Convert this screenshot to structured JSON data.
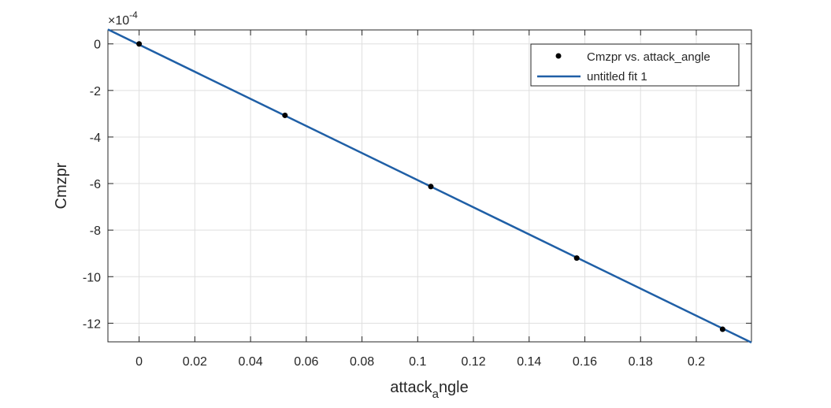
{
  "chart_data": {
    "type": "scatter",
    "xlabel": "attack",
    "xlabel_subscript": "a",
    "xlabel_suffix": "ngle",
    "ylabel": "Cmzpr",
    "exponent_label": "×10",
    "exponent_power": "-4",
    "xlim": [
      -0.0112,
      0.2198
    ],
    "ylim": [
      -12.8,
      0.6
    ],
    "x_ticks": [
      0,
      0.02,
      0.04,
      0.06,
      0.08,
      0.1,
      0.12,
      0.14,
      0.16,
      0.18,
      0.2
    ],
    "x_tick_labels": [
      "0",
      "0.02",
      "0.04",
      "0.06",
      "0.08",
      "0.1",
      "0.12",
      "0.14",
      "0.16",
      "0.18",
      "0.2"
    ],
    "y_ticks": [
      0,
      -2,
      -4,
      -6,
      -8,
      -10,
      -12
    ],
    "y_tick_labels": [
      "0",
      "-2",
      "-4",
      "-6",
      "-8",
      "-10",
      "-12"
    ],
    "grid": true,
    "legend_position": "top-right",
    "series": [
      {
        "name": "Cmzpr vs. attack_angle",
        "kind": "points",
        "color": "#000000",
        "x": [
          0,
          0.05236,
          0.10472,
          0.15708,
          0.20944
        ],
        "y": [
          0,
          -3.07,
          -6.13,
          -9.2,
          -12.26
        ]
      },
      {
        "name": "untitled fit 1",
        "kind": "line",
        "color": "#1f5fa6",
        "x": [
          -0.0112,
          0.2198
        ],
        "y": [
          0.62,
          -12.83
        ]
      }
    ]
  }
}
